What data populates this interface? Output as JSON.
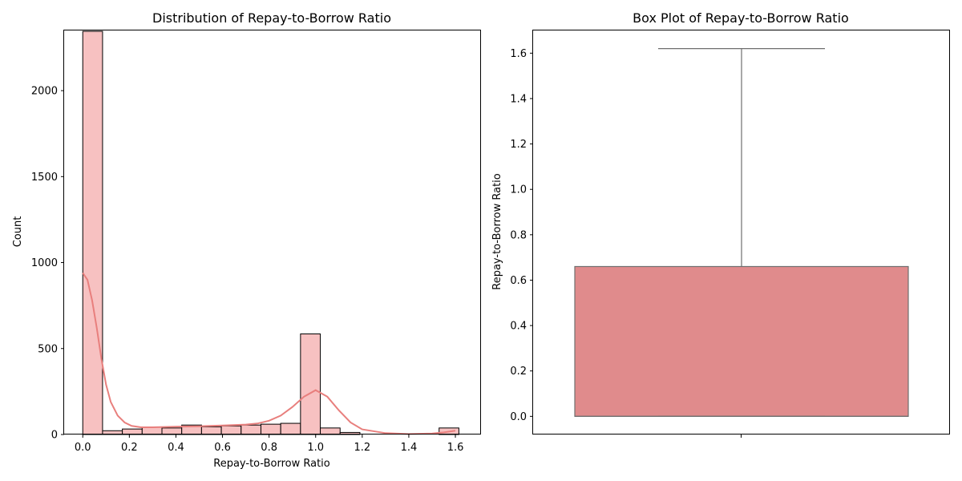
{
  "chart_data": [
    {
      "type": "bar",
      "title": "Distribution of Repay-to-Borrow Ratio",
      "xlabel": "Repay-to-Borrow Ratio",
      "ylabel": "Count",
      "xlim": [
        -0.08,
        1.71
      ],
      "ylim": [
        0,
        2350
      ],
      "xticks": [
        0.0,
        0.2,
        0.4,
        0.6,
        0.8,
        1.0,
        1.2,
        1.4,
        1.6
      ],
      "xtick_labels": [
        "0.0",
        "0.2",
        "0.4",
        "0.6",
        "0.8",
        "1.0",
        "1.2",
        "1.4",
        "1.6"
      ],
      "yticks": [
        0,
        500,
        1000,
        1500,
        2000
      ],
      "ytick_labels": [
        "0",
        "500",
        "1000",
        "1500",
        "2000"
      ],
      "bin_width": 0.085,
      "bins_start": [
        0.0,
        0.085,
        0.17,
        0.255,
        0.34,
        0.425,
        0.51,
        0.595,
        0.68,
        0.765,
        0.85,
        0.935,
        1.02,
        1.105,
        1.19,
        1.275,
        1.36,
        1.445,
        1.53
      ],
      "counts": [
        2345,
        22,
        32,
        42,
        38,
        55,
        45,
        50,
        55,
        60,
        65,
        585,
        38,
        12,
        0,
        0,
        0,
        0,
        38
      ],
      "kde": {
        "x": [
          0.0,
          0.02,
          0.04,
          0.06,
          0.08,
          0.1,
          0.12,
          0.15,
          0.18,
          0.21,
          0.25,
          0.3,
          0.4,
          0.5,
          0.6,
          0.7,
          0.75,
          0.8,
          0.85,
          0.9,
          0.95,
          1.0,
          1.05,
          1.1,
          1.15,
          1.2,
          1.3,
          1.4,
          1.5,
          1.55,
          1.6
        ],
        "y": [
          940,
          900,
          780,
          620,
          440,
          290,
          190,
          110,
          70,
          50,
          42,
          42,
          45,
          48,
          52,
          58,
          64,
          80,
          110,
          160,
          220,
          258,
          220,
          140,
          70,
          30,
          8,
          3,
          6,
          12,
          22
        ]
      }
    },
    {
      "type": "box",
      "title": "Box Plot of Repay-to-Borrow Ratio",
      "ylabel": "Repay-to-Borrow Ratio",
      "ylim": [
        -0.08,
        1.7
      ],
      "yticks": [
        0.0,
        0.2,
        0.4,
        0.6,
        0.8,
        1.0,
        1.2,
        1.4,
        1.6
      ],
      "ytick_labels": [
        "0.0",
        "0.2",
        "0.4",
        "0.6",
        "0.8",
        "1.0",
        "1.2",
        "1.4",
        "1.6"
      ],
      "min": 0.0,
      "q1": 0.0,
      "median": 0.0,
      "q3": 0.66,
      "max": 1.62,
      "color": "#e08b8c"
    }
  ]
}
